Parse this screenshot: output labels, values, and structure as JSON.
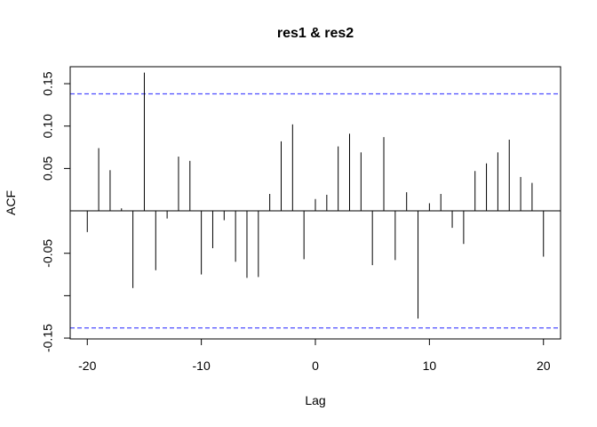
{
  "chart_data": {
    "type": "bar",
    "title": "res1 & res2",
    "xlabel": "Lag",
    "ylabel": "ACF",
    "xlim": [
      -21.5,
      21.5
    ],
    "ylim": [
      -0.151,
      0.17
    ],
    "x_ticks": [
      {
        "value": -20,
        "label": "-20"
      },
      {
        "value": -10,
        "label": "-10"
      },
      {
        "value": 0,
        "label": "0"
      },
      {
        "value": 10,
        "label": "10"
      },
      {
        "value": 20,
        "label": "20"
      }
    ],
    "y_ticks": [
      {
        "value": -0.15,
        "label": "-0.15"
      },
      {
        "value": -0.1,
        "label": ""
      },
      {
        "value": -0.05,
        "label": "-0.05"
      },
      {
        "value": 0.05,
        "label": "0.05"
      },
      {
        "value": 0.1,
        "label": "0.10"
      },
      {
        "value": 0.15,
        "label": "0.15"
      }
    ],
    "confidence_bounds": {
      "upper": 0.138,
      "lower": -0.138,
      "color": "#4c4cff"
    },
    "lags": [
      -20,
      -19,
      -18,
      -17,
      -16,
      -15,
      -14,
      -13,
      -12,
      -11,
      -10,
      -9,
      -8,
      -7,
      -6,
      -5,
      -4,
      -3,
      -2,
      -1,
      0,
      1,
      2,
      3,
      4,
      5,
      6,
      7,
      8,
      9,
      10,
      11,
      12,
      13,
      14,
      15,
      16,
      17,
      18,
      19,
      20
    ],
    "values": [
      -0.025,
      0.074,
      0.048,
      0.003,
      -0.091,
      0.163,
      -0.07,
      -0.009,
      0.064,
      0.059,
      -0.075,
      -0.044,
      -0.011,
      -0.06,
      -0.079,
      -0.078,
      0.02,
      0.082,
      0.102,
      -0.057,
      0.014,
      0.019,
      0.076,
      0.091,
      0.069,
      -0.064,
      0.087,
      -0.058,
      0.022,
      -0.127,
      0.009,
      0.02,
      -0.02,
      -0.039,
      0.047,
      0.056,
      0.069,
      0.084,
      0.04,
      0.033,
      -0.054
    ],
    "grid": false,
    "legend": "none"
  }
}
